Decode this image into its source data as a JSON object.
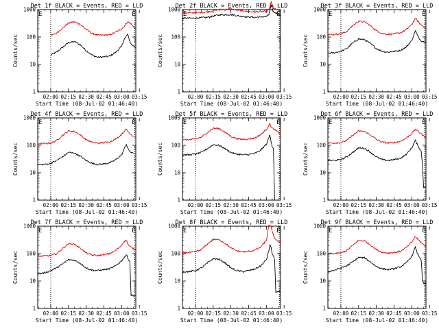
{
  "figure": {
    "background": "#ffffff",
    "series_colors": {
      "events": "#000000",
      "lld": "#dd0000"
    }
  },
  "chart_data": [
    {
      "type": "line",
      "title": "Det 1f BLACK = Events, RED = LLD",
      "xlabel": "Start Time (08-Jul-02 01:46:40)",
      "ylabel": "Counts/sec",
      "x_tick_labels": [
        "02:00",
        "02:15",
        "02:30",
        "02:45",
        "03:00",
        "03:15"
      ],
      "y_tick_labels": [
        "1",
        "10",
        "100",
        "1000"
      ],
      "yscale": "log",
      "ylim": [
        1,
        1000
      ],
      "xlim_minutes": [
        -11,
        72
      ],
      "edge_marks": [
        "E",
        "E"
      ],
      "vlines_minutes": [
        0,
        71
      ],
      "x": [
        0,
        5,
        10,
        15,
        20,
        25,
        30,
        35,
        40,
        45,
        50,
        55,
        60,
        62,
        65,
        67,
        68,
        69,
        70,
        71,
        72
      ],
      "series": [
        {
          "name": "Events",
          "color": "#000000",
          "values": [
            22,
            28,
            42,
            62,
            68,
            52,
            32,
            22,
            18,
            19,
            20,
            28,
            45,
            80,
            125,
            70,
            55,
            50,
            48,
            45,
            42
          ]
        },
        {
          "name": "LLD",
          "color": "#dd0000",
          "values": [
            110,
            140,
            210,
            320,
            360,
            290,
            190,
            135,
            115,
            118,
            120,
            150,
            200,
            240,
            360,
            330,
            300,
            260,
            240,
            220,
            205
          ]
        }
      ]
    },
    {
      "type": "line",
      "title": "Det 2f BLACK = Events, RED = LLD",
      "xlabel": "Start Time (08-Jul-02 01:46:40)",
      "ylabel": "Counts/sec",
      "x_tick_labels": [
        "02:00",
        "02:15",
        "02:30",
        "02:45",
        "03:00",
        "03:15"
      ],
      "y_tick_labels": [
        "1",
        "10",
        "100",
        "1000"
      ],
      "yscale": "log",
      "ylim": [
        1,
        1000
      ],
      "xlim_minutes": [
        -11,
        72
      ],
      "edge_marks": [
        "E",
        "E"
      ],
      "vlines_minutes": [
        0,
        71
      ],
      "x": [
        -11,
        0,
        10,
        20,
        30,
        40,
        50,
        60,
        62,
        64,
        66,
        68,
        70,
        72
      ],
      "series": [
        {
          "name": "Events",
          "color": "#000000",
          "values": [
            480,
            490,
            520,
            640,
            660,
            560,
            520,
            560,
            650,
            1400,
            820,
            760,
            700,
            640
          ]
        },
        {
          "name": "LLD",
          "color": "#dd0000",
          "values": [
            760,
            770,
            820,
            1000,
            1050,
            880,
            820,
            860,
            960,
            1850,
            1120,
            1040,
            960,
            880
          ]
        }
      ]
    },
    {
      "type": "line",
      "title": "Det 3f BLACK = Events, RED = LLD",
      "xlabel": "Start Time (08-Jul-02 01:46:40)",
      "ylabel": "Counts/sec",
      "x_tick_labels": [
        "02:00",
        "02:15",
        "02:30",
        "02:45",
        "03:00",
        "03:15"
      ],
      "y_tick_labels": [
        "1",
        "10",
        "100",
        "1000"
      ],
      "yscale": "log",
      "ylim": [
        1,
        1000
      ],
      "xlim_minutes": [
        -11,
        72
      ],
      "edge_marks": [
        "E",
        "E"
      ],
      "vlines_minutes": [
        0,
        71
      ],
      "x": [
        -11,
        -5,
        0,
        5,
        10,
        15,
        20,
        25,
        30,
        35,
        40,
        45,
        50,
        55,
        60,
        63,
        65,
        67,
        69,
        71,
        72
      ],
      "series": [
        {
          "name": "Events",
          "color": "#000000",
          "values": [
            25,
            27,
            30,
            38,
            60,
            85,
            80,
            58,
            38,
            30,
            28,
            30,
            32,
            42,
            75,
            170,
            110,
            80,
            70,
            65,
            60
          ]
        },
        {
          "name": "LLD",
          "color": "#dd0000",
          "values": [
            120,
            125,
            130,
            160,
            260,
            370,
            360,
            260,
            170,
            135,
            125,
            130,
            140,
            180,
            280,
            480,
            380,
            300,
            260,
            230,
            210
          ]
        }
      ]
    },
    {
      "type": "line",
      "title": "Det 4f BLACK = Events, RED = LLD",
      "xlabel": "Start Time (08-Jul-02 01:46:40)",
      "ylabel": "Counts/sec",
      "x_tick_labels": [
        "02:00",
        "02:15",
        "02:30",
        "02:45",
        "03:00",
        "03:15"
      ],
      "y_tick_labels": [
        "1",
        "10",
        "100",
        "1000"
      ],
      "yscale": "log",
      "ylim": [
        1,
        1000
      ],
      "xlim_minutes": [
        -11,
        72
      ],
      "edge_marks": [
        "E",
        "E"
      ],
      "vlines_minutes": [
        0,
        71
      ],
      "x": [
        -11,
        -5,
        0,
        5,
        10,
        15,
        20,
        25,
        30,
        35,
        40,
        45,
        50,
        55,
        60,
        62,
        64,
        66,
        68,
        70
      ],
      "series": [
        {
          "name": "Events",
          "color": "#000000",
          "values": [
            20,
            20,
            22,
            28,
            38,
            55,
            52,
            40,
            28,
            22,
            20,
            21,
            23,
            30,
            45,
            70,
            110,
            65,
            55,
            50
          ]
        },
        {
          "name": "LLD",
          "color": "#dd0000",
          "values": [
            115,
            115,
            120,
            150,
            230,
            330,
            320,
            240,
            160,
            128,
            120,
            125,
            135,
            170,
            250,
            330,
            380,
            300,
            250,
            210
          ]
        }
      ]
    },
    {
      "type": "line",
      "title": "Det 5f BLACK = Events, RED = LLD",
      "xlabel": "Start Time (08-Jul-02 01:46:40)",
      "ylabel": "Counts/sec",
      "x_tick_labels": [
        "02:00",
        "02:15",
        "02:30",
        "02:45",
        "03:00",
        "03:15"
      ],
      "y_tick_labels": [
        "1",
        "10",
        "100",
        "1000"
      ],
      "yscale": "log",
      "ylim": [
        1,
        1000
      ],
      "xlim_minutes": [
        -11,
        72
      ],
      "edge_marks": [
        "E",
        "E"
      ],
      "vlines_minutes": [
        0,
        71
      ],
      "x": [
        -11,
        -5,
        0,
        5,
        10,
        15,
        20,
        25,
        30,
        35,
        40,
        45,
        50,
        55,
        60,
        63,
        64,
        65,
        66,
        67,
        70,
        72
      ],
      "series": [
        {
          "name": "Events",
          "color": "#000000",
          "values": [
            45,
            45,
            48,
            55,
            75,
            105,
            100,
            75,
            55,
            48,
            45,
            46,
            50,
            65,
            110,
            240,
            140,
            90,
            75,
            1,
            1,
            1
          ]
        },
        {
          "name": "LLD",
          "color": "#dd0000",
          "values": [
            160,
            160,
            170,
            200,
            290,
            420,
            410,
            300,
            210,
            175,
            165,
            170,
            185,
            240,
            380,
            620,
            480,
            420,
            390,
            370,
            300,
            260
          ]
        }
      ]
    },
    {
      "type": "line",
      "title": "Det 6f BLACK = Events, RED = LLD",
      "xlabel": "Start Time (08-Jul-02 01:46:40)",
      "ylabel": "Counts/sec",
      "x_tick_labels": [
        "02:00",
        "02:15",
        "02:30",
        "02:45",
        "03:00",
        "03:15"
      ],
      "y_tick_labels": [
        "1",
        "10",
        "100",
        "1000"
      ],
      "yscale": "log",
      "ylim": [
        1,
        1000
      ],
      "xlim_minutes": [
        -11,
        72
      ],
      "edge_marks": [
        "E",
        "E"
      ],
      "vlines_minutes": [
        0,
        71
      ],
      "x": [
        -11,
        -5,
        0,
        5,
        10,
        15,
        20,
        25,
        30,
        35,
        40,
        45,
        50,
        55,
        60,
        63,
        65,
        67,
        68,
        69,
        70,
        72
      ],
      "series": [
        {
          "name": "Events",
          "color": "#000000",
          "values": [
            28,
            28,
            30,
            38,
            55,
            80,
            78,
            56,
            38,
            30,
            28,
            30,
            33,
            45,
            80,
            150,
            100,
            70,
            60,
            20,
            3,
            3
          ]
        },
        {
          "name": "LLD",
          "color": "#dd0000",
          "values": [
            120,
            122,
            125,
            150,
            230,
            330,
            320,
            240,
            165,
            130,
            122,
            126,
            138,
            180,
            270,
            380,
            330,
            280,
            260,
            240,
            220,
            190
          ]
        }
      ]
    },
    {
      "type": "line",
      "title": "Det 7f BLACK = Events, RED = LLD",
      "xlabel": "Start Time (08-Jul-02 01:46:40)",
      "ylabel": "Counts/sec",
      "x_tick_labels": [
        "02:00",
        "02:15",
        "02:30",
        "02:45",
        "03:00",
        "03:15"
      ],
      "y_tick_labels": [
        "1",
        "10",
        "100",
        "1000"
      ],
      "yscale": "log",
      "ylim": [
        1,
        1000
      ],
      "xlim_minutes": [
        -11,
        72
      ],
      "edge_marks": [
        "E",
        "E"
      ],
      "vlines_minutes": [
        0,
        71
      ],
      "x": [
        -11,
        -5,
        0,
        5,
        10,
        15,
        20,
        25,
        30,
        35,
        40,
        45,
        50,
        55,
        60,
        62,
        64,
        66,
        67,
        68,
        70,
        72
      ],
      "series": [
        {
          "name": "Events",
          "color": "#000000",
          "values": [
            18,
            20,
            24,
            30,
            42,
            60,
            58,
            44,
            30,
            25,
            24,
            26,
            28,
            36,
            55,
            72,
            90,
            60,
            50,
            3,
            3,
            3
          ]
        },
        {
          "name": "LLD",
          "color": "#dd0000",
          "values": [
            80,
            82,
            85,
            100,
            150,
            230,
            220,
            160,
            105,
            88,
            85,
            90,
            100,
            130,
            200,
            280,
            300,
            200,
            180,
            170,
            150,
            130
          ]
        }
      ]
    },
    {
      "type": "line",
      "title": "Det 8f BLACK = Events, RED = LLD",
      "xlabel": "Start Time (08-Jul-02 01:46:40)",
      "ylabel": "Counts/sec",
      "x_tick_labels": [
        "02:00",
        "02:15",
        "02:30",
        "02:45",
        "03:00",
        "03:15"
      ],
      "y_tick_labels": [
        "1",
        "10",
        "100",
        "1000"
      ],
      "yscale": "log",
      "ylim": [
        1,
        1000
      ],
      "xlim_minutes": [
        -11,
        72
      ],
      "edge_marks": [
        "E",
        "E"
      ],
      "vlines_minutes": [
        0,
        71
      ],
      "x": [
        -11,
        -5,
        0,
        5,
        10,
        15,
        20,
        25,
        30,
        35,
        40,
        45,
        50,
        55,
        60,
        62,
        63,
        64,
        65,
        66,
        67,
        68,
        70,
        72
      ],
      "series": [
        {
          "name": "Events",
          "color": "#000000",
          "values": [
            22,
            22,
            24,
            30,
            45,
            65,
            62,
            46,
            30,
            24,
            22,
            24,
            27,
            35,
            60,
            120,
            210,
            160,
            100,
            80,
            60,
            4,
            4,
            4
          ]
        },
        {
          "name": "LLD",
          "color": "#dd0000",
          "values": [
            110,
            110,
            115,
            140,
            220,
            330,
            320,
            240,
            160,
            125,
            115,
            120,
            132,
            170,
            300,
            1000,
            1000,
            1000,
            600,
            450,
            380,
            330,
            270,
            230
          ]
        }
      ]
    },
    {
      "type": "line",
      "title": "Det 9f BLACK = Events, RED = LLD",
      "xlabel": "Start Time (08-Jul-02 01:46:40)",
      "ylabel": "Counts/sec",
      "x_tick_labels": [
        "02:00",
        "02:15",
        "02:30",
        "02:45",
        "03:00",
        "03:15"
      ],
      "y_tick_labels": [
        "1",
        "10",
        "100",
        "1000"
      ],
      "yscale": "log",
      "ylim": [
        1,
        1000
      ],
      "xlim_minutes": [
        -11,
        72
      ],
      "edge_marks": [
        "E",
        "E"
      ],
      "vlines_minutes": [
        0,
        71
      ],
      "x": [
        -11,
        -5,
        0,
        5,
        10,
        15,
        20,
        25,
        30,
        35,
        40,
        45,
        50,
        55,
        60,
        63,
        65,
        67,
        68,
        69,
        70,
        72
      ],
      "series": [
        {
          "name": "Events",
          "color": "#000000",
          "values": [
            22,
            25,
            30,
            36,
            50,
            72,
            70,
            50,
            34,
            28,
            26,
            28,
            32,
            44,
            80,
            170,
            95,
            70,
            60,
            10,
            8,
            8
          ]
        },
        {
          "name": "LLD",
          "color": "#dd0000",
          "values": [
            100,
            100,
            105,
            130,
            200,
            300,
            290,
            210,
            140,
            112,
            105,
            110,
            120,
            160,
            260,
            420,
            330,
            280,
            250,
            230,
            210,
            180
          ]
        }
      ]
    }
  ]
}
